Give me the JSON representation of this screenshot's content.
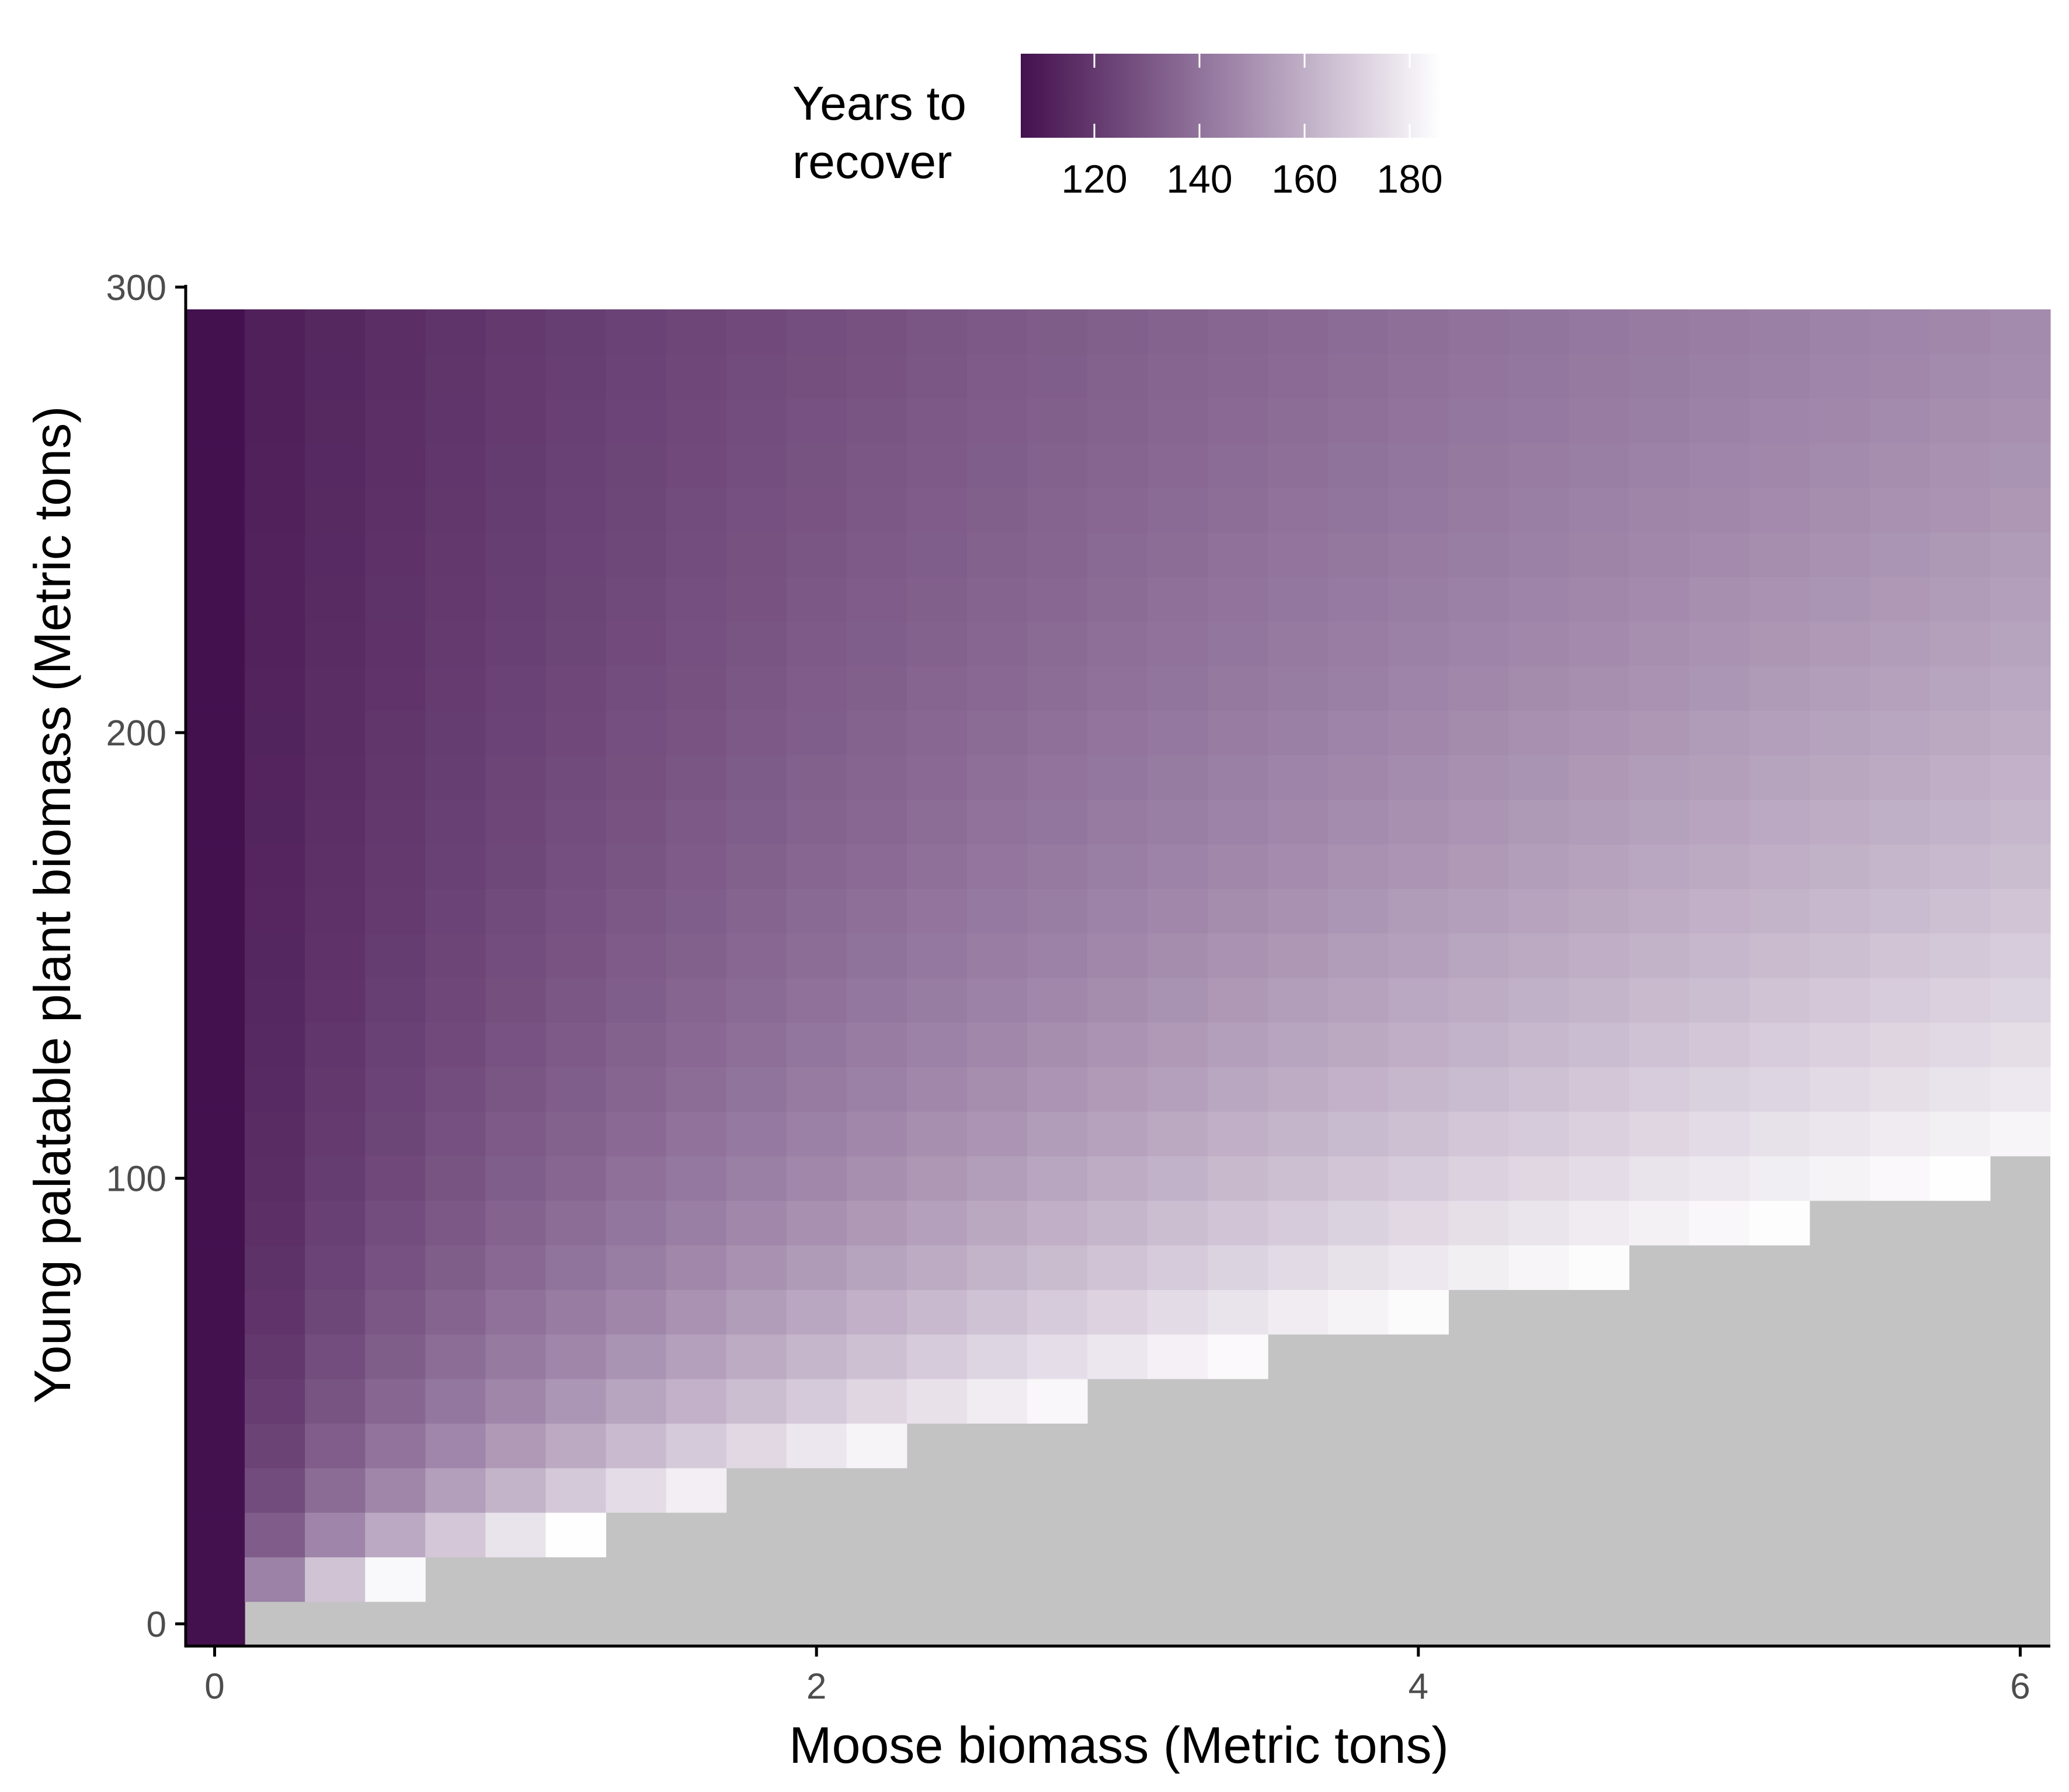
{
  "chart_data": {
    "type": "heatmap",
    "xlabel": "Moose biomass (Metric tons)",
    "ylabel": "Young palatable plant biomass (Metric tons)",
    "x_ticks": [
      0,
      2,
      4,
      6
    ],
    "y_ticks": [
      0,
      100,
      200,
      300
    ],
    "x_cell_width": 0.2,
    "y_cell_height": 10,
    "x_centers": [
      0.0,
      0.2,
      0.4,
      0.6,
      0.8,
      1.0,
      1.2,
      1.4,
      1.6,
      1.8,
      2.0,
      2.2,
      2.4,
      2.6,
      2.8,
      3.0,
      3.2,
      3.4,
      3.6,
      3.8,
      4.0,
      4.2,
      4.4,
      4.6,
      4.8,
      5.0,
      5.2,
      5.4,
      5.6,
      5.8,
      6.0
    ],
    "y_centers": [
      0,
      10,
      20,
      30,
      40,
      50,
      60,
      70,
      80,
      90,
      100,
      110,
      120,
      130,
      140,
      150,
      160,
      170,
      180,
      190,
      200,
      210,
      220,
      230,
      240,
      250,
      260,
      270,
      280,
      290
    ],
    "xlim": [
      -0.1,
      6.1
    ],
    "ylim": [
      -5,
      295
    ],
    "legend": {
      "title": "Years to recover",
      "title_lines": [
        "Years to",
        "recover"
      ],
      "position": "top",
      "ticks": [
        120,
        140,
        160,
        180
      ],
      "range": [
        106,
        186
      ],
      "low_color": "#44114f",
      "high_color": "#ffffff"
    },
    "na_color": "#c3c3c3",
    "value_model": "Values estimated from color: years = 106 + 80*s, where s grows with moose biomass and decreases with plant biomass; cells with plant biomass below the recovery threshold (threshold(y) ≈ 0.05 + 0.058*y tons of moose) have no value (gray)."
  }
}
